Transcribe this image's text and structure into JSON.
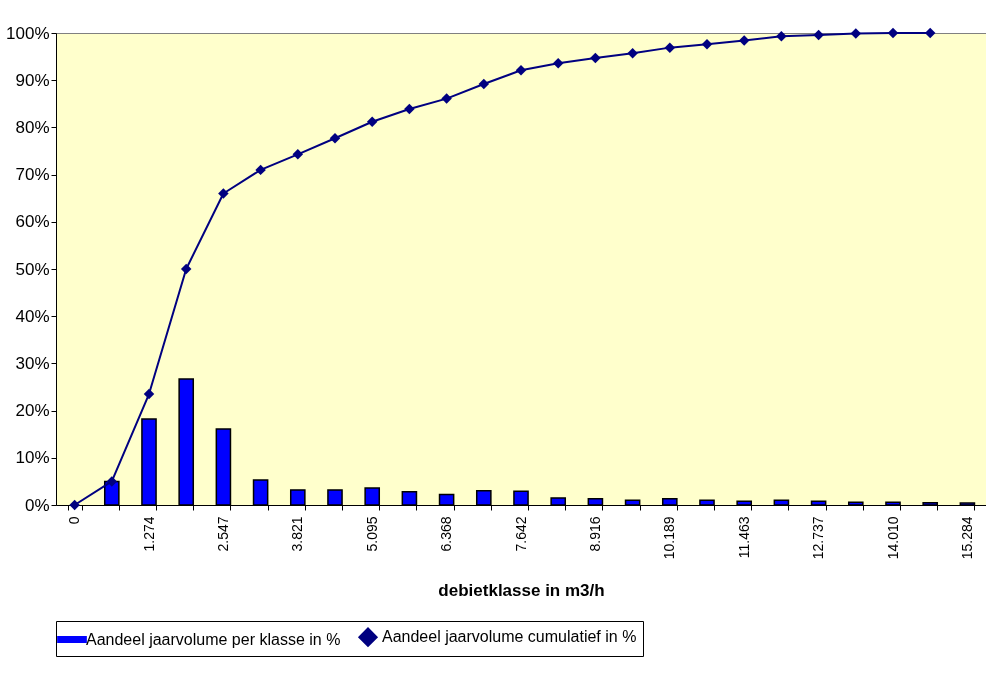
{
  "chart_data": {
    "type": "bar",
    "xlabel": "debietklasse in m3/h",
    "categories": [
      "0",
      null,
      "1.274",
      null,
      "2.547",
      null,
      "3.821",
      null,
      "5.095",
      null,
      "6.368",
      null,
      "7.642",
      null,
      "8.916",
      null,
      "10.189",
      null,
      "11.463",
      null,
      "12.737",
      null,
      "14.010",
      null,
      "15.284"
    ],
    "series": [
      {
        "name": "Aandeel jaarvolume per klasse in %",
        "color": "#0000ff",
        "values": [
          null,
          5,
          18.2,
          26.7,
          16.1,
          5.3,
          3.2,
          3.2,
          3.6,
          2.8,
          2.2,
          3.0,
          2.9,
          1.5,
          1.3,
          1.0,
          1.3,
          1.0,
          0.8,
          1.0,
          0.8,
          0.6,
          0.6,
          0.5,
          0.4
        ]
      },
      {
        "name": "Aandeel jaarvolume cumulatief in %",
        "type": "line",
        "color": "#000080",
        "marker": "diamond",
        "values": [
          0,
          5,
          23.5,
          50,
          66,
          71,
          74.3,
          77.7,
          81.2,
          83.9,
          86.1,
          89.2,
          92.1,
          93.6,
          94.7,
          95.7,
          96.9,
          97.6,
          98.4,
          99.3,
          99.6,
          99.9,
          100,
          100,
          null
        ]
      }
    ],
    "ylim": [
      0,
      100
    ],
    "yticks": [
      {
        "value": 0,
        "label": "0%"
      },
      {
        "value": 10,
        "label": "10%"
      },
      {
        "value": 20,
        "label": "20%"
      },
      {
        "value": 30,
        "label": "30%"
      },
      {
        "value": 40,
        "label": "40%"
      },
      {
        "value": 50,
        "label": "50%"
      },
      {
        "value": 60,
        "label": "60%"
      },
      {
        "value": 70,
        "label": "70%"
      },
      {
        "value": 80,
        "label": "80%"
      },
      {
        "value": 90,
        "label": "90%"
      },
      {
        "value": 100,
        "label": "100%"
      }
    ],
    "legend": "bottom"
  }
}
